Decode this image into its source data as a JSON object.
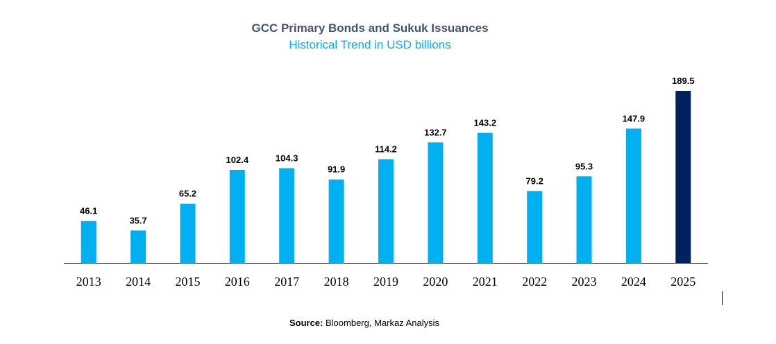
{
  "colors": {
    "title": "#44546a",
    "subtitle": "#00b0f0",
    "bar": "#00b0f0",
    "highlight_bar": "#002060",
    "axis": "#000000",
    "label": "#000000"
  },
  "source": {
    "label": "Source:",
    "text": "Bloomberg, Markaz Analysis"
  },
  "chart_data": {
    "type": "bar",
    "title": "GCC Primary Bonds and Sukuk Issuances",
    "subtitle": "Historical Trend in USD billions",
    "categories": [
      "2013",
      "2014",
      "2015",
      "2016",
      "2017",
      "2018",
      "2019",
      "2020",
      "2021",
      "2022",
      "2023",
      "2024",
      "2025"
    ],
    "values": [
      46.1,
      35.7,
      65.2,
      102.4,
      104.3,
      91.9,
      114.2,
      132.7,
      143.2,
      79.2,
      95.3,
      147.9,
      189.5
    ],
    "value_labels": [
      "46.1",
      "35.7",
      "65.2",
      "102.4",
      "104.3",
      "91.9",
      "114.2",
      "132.7",
      "143.2",
      "79.2",
      "95.3",
      "147.9",
      "189.5"
    ],
    "highlight_category": "2025",
    "xlabel": "",
    "ylabel": "",
    "ylim": [
      0,
      189.5
    ],
    "grid": false,
    "legend": "none"
  }
}
